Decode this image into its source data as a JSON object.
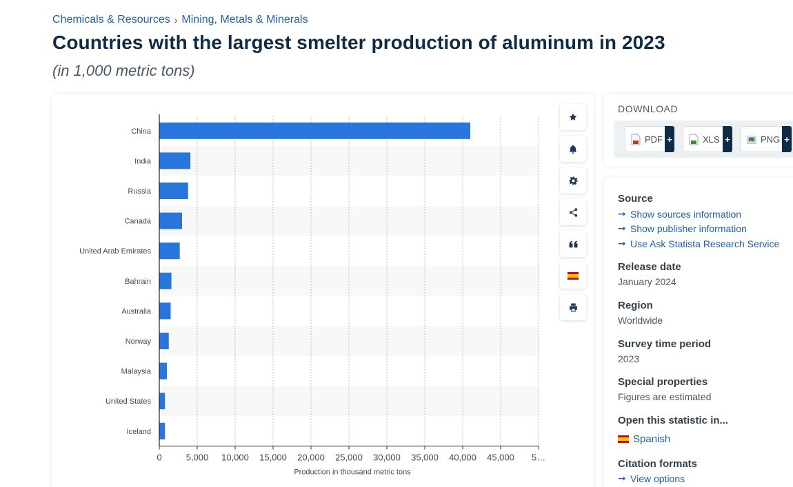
{
  "breadcrumb": {
    "level1": "Chemicals & Resources",
    "separator": "›",
    "level2": "Mining, Metals & Minerals"
  },
  "title": "Countries with the largest smelter production of aluminum in 2023",
  "subtitle": "(in 1,000 metric tons)",
  "toolbar": {
    "icons": [
      "star-icon",
      "bell-icon",
      "gear-icon",
      "share-icon",
      "quote-icon",
      "spanish-flag-icon",
      "print-icon"
    ]
  },
  "download": {
    "title": "DOWNLOAD",
    "buttons": [
      {
        "label": "PDF",
        "plus": "+",
        "color": "#c0392b"
      },
      {
        "label": "XLS",
        "plus": "+",
        "color": "#3c8d2f"
      },
      {
        "label": "PNG",
        "plus": "+",
        "color": "#2e6fb7"
      }
    ]
  },
  "info": {
    "source_heading": "Source",
    "source_links": [
      "Show sources information",
      "Show publisher information",
      "Use Ask Statista Research Service"
    ],
    "release_heading": "Release date",
    "release_value": "January 2024",
    "region_heading": "Region",
    "region_value": "Worldwide",
    "survey_heading": "Survey time period",
    "survey_value": "2023",
    "special_heading": "Special properties",
    "special_value": "Figures are estimated",
    "open_heading": "Open this statistic in...",
    "open_link": "Spanish",
    "citation_heading": "Citation formats",
    "citation_link": "View options"
  },
  "chart_data": {
    "type": "bar",
    "orientation": "horizontal",
    "categories": [
      "China",
      "India",
      "Russia",
      "Canada",
      "United Arab Emirates",
      "Bahrain",
      "Australia",
      "Norway",
      "Malaysia",
      "United States",
      "Iceland"
    ],
    "values": [
      41000,
      4100,
      3800,
      3000,
      2700,
      1600,
      1500,
      1250,
      1000,
      750,
      750
    ],
    "xlabel": "Production in thousand metric tons",
    "ylabel": "",
    "xlim": [
      0,
      50000
    ],
    "xticks": [
      "0",
      "5,000",
      "10,000",
      "15,000",
      "20,000",
      "25,000",
      "30,000",
      "35,000",
      "40,000",
      "45,000",
      "5…"
    ],
    "grid": true,
    "bar_color": "#2876dd"
  }
}
